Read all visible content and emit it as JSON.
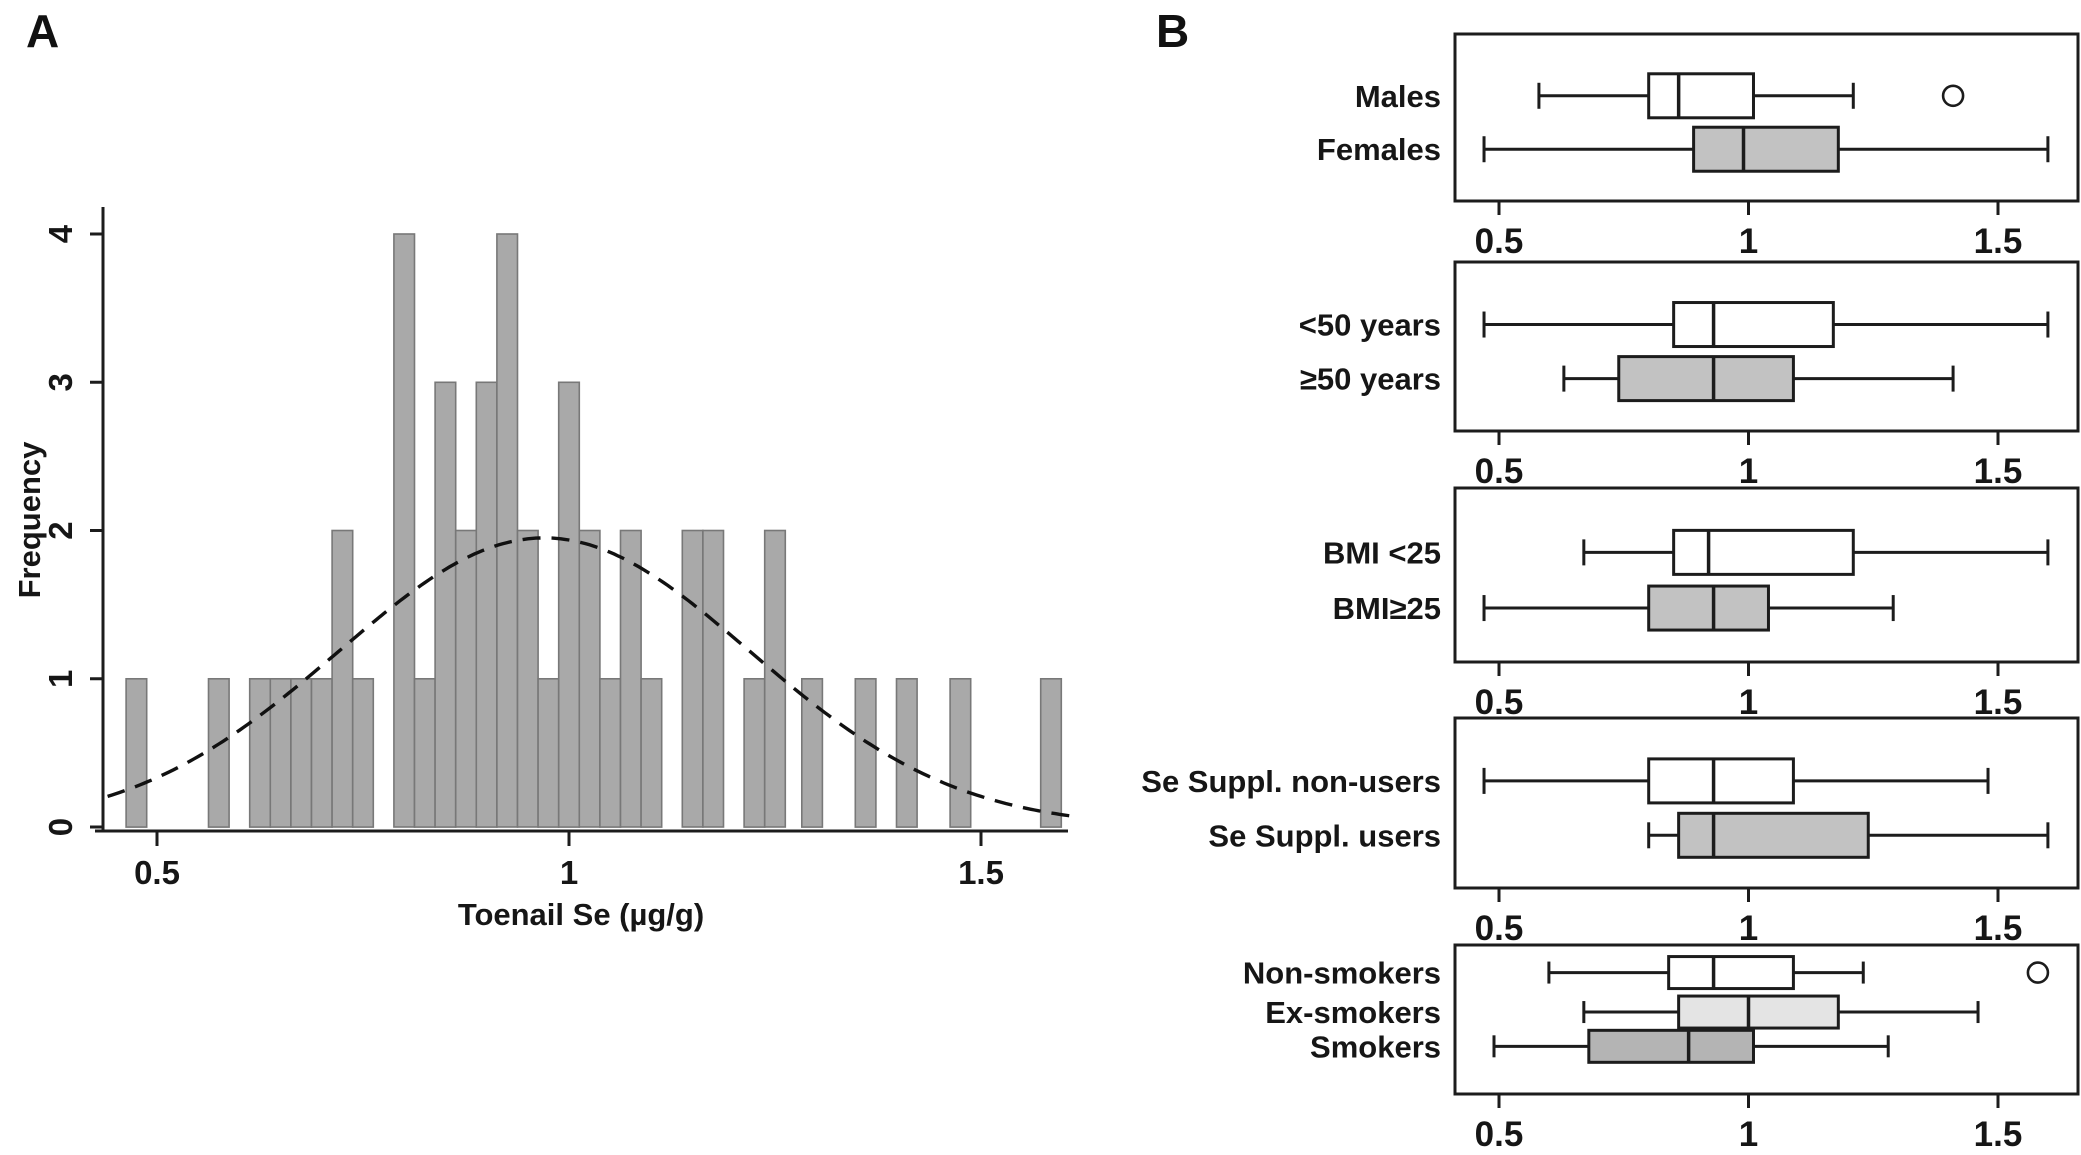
{
  "figure": {
    "panel_a_letter": "A",
    "panel_b_letter": "B",
    "colors": {
      "stroke": "#1c1c1c",
      "bar_fill": "#a9a9a9",
      "bar_stroke": "#787878",
      "curve_color": "#111111",
      "box_white": "#ffffff",
      "box_gray": "#c2c2c2",
      "box_light_gray": "#e4e4e4",
      "box_mid_gray": "#b4b4b4",
      "text": "#161616"
    }
  },
  "chart_data": [
    {
      "type": "bar",
      "subtype": "histogram",
      "title": "",
      "xlabel": "Toenail Se (µg/g)",
      "ylabel": "Frequency",
      "xlim": [
        0.44,
        1.63
      ],
      "ylim": [
        0,
        4
      ],
      "x_tick_values": [
        0.5,
        1.0,
        1.5
      ],
      "x_tick_labels": [
        "0.5",
        "1",
        "1.5"
      ],
      "y_tick_values": [
        0,
        1,
        2,
        3,
        4
      ],
      "y_tick_labels": [
        "0",
        "1",
        "2",
        "3",
        "4"
      ],
      "grid": false,
      "bin_width": 0.025,
      "bins": {
        "centers": [
          0.475,
          0.575,
          0.625,
          0.65,
          0.675,
          0.7,
          0.725,
          0.75,
          0.8,
          0.825,
          0.85,
          0.875,
          0.9,
          0.925,
          0.95,
          0.975,
          1.0,
          1.025,
          1.05,
          1.075,
          1.1,
          1.15,
          1.175,
          1.225,
          1.25,
          1.295,
          1.36,
          1.41,
          1.475,
          1.585
        ],
        "heights": [
          1,
          1,
          1,
          1,
          1,
          1,
          2,
          1,
          4,
          1,
          3,
          2,
          3,
          4,
          2,
          1,
          3,
          2,
          1,
          2,
          1,
          2,
          2,
          1,
          2,
          1,
          1,
          1,
          1,
          1
        ]
      },
      "n_total": 50,
      "curve": {
        "shape": "normal",
        "mean": 0.97,
        "sd": 0.25,
        "peak": 1.95,
        "style": "dashed",
        "range": [
          0.44,
          1.615
        ]
      }
    },
    {
      "type": "boxplot-panels",
      "orientation": "horizontal",
      "xlim": [
        0.44,
        1.63
      ],
      "x_tick_values": [
        0.5,
        1.0,
        1.5
      ],
      "x_tick_labels": [
        "0.5",
        "1",
        "1.5"
      ],
      "panels": [
        {
          "groups": [
            {
              "label": "Males",
              "fill": "white",
              "lo": 0.58,
              "q1": 0.8,
              "med": 0.86,
              "q3": 1.01,
              "hi": 1.21,
              "outliers": [
                1.41
              ]
            },
            {
              "label": "Females",
              "fill": "gray",
              "lo": 0.47,
              "q1": 0.89,
              "med": 0.99,
              "q3": 1.18,
              "hi": 1.6,
              "outliers": []
            }
          ]
        },
        {
          "groups": [
            {
              "label": "<50 years",
              "fill": "white",
              "lo": 0.47,
              "q1": 0.85,
              "med": 0.93,
              "q3": 1.17,
              "hi": 1.6,
              "outliers": []
            },
            {
              "label": "≥50 years",
              "fill": "gray",
              "lo": 0.63,
              "q1": 0.74,
              "med": 0.93,
              "q3": 1.09,
              "hi": 1.41,
              "outliers": []
            }
          ]
        },
        {
          "groups": [
            {
              "label": "BMI <25",
              "fill": "white",
              "lo": 0.67,
              "q1": 0.85,
              "med": 0.92,
              "q3": 1.21,
              "hi": 1.6,
              "outliers": []
            },
            {
              "label": "BMI≥25",
              "fill": "gray",
              "lo": 0.47,
              "q1": 0.8,
              "med": 0.93,
              "q3": 1.04,
              "hi": 1.29,
              "outliers": []
            }
          ]
        },
        {
          "groups": [
            {
              "label": "Se Suppl. non-users",
              "fill": "white",
              "lo": 0.47,
              "q1": 0.8,
              "med": 0.93,
              "q3": 1.09,
              "hi": 1.48,
              "outliers": []
            },
            {
              "label": "Se Suppl. users",
              "fill": "gray",
              "lo": 0.8,
              "q1": 0.86,
              "med": 0.93,
              "q3": 1.24,
              "hi": 1.6,
              "outliers": []
            }
          ]
        },
        {
          "groups": [
            {
              "label": "Non-smokers",
              "fill": "white",
              "lo": 0.6,
              "q1": 0.84,
              "med": 0.93,
              "q3": 1.09,
              "hi": 1.23,
              "outliers": [
                1.58
              ]
            },
            {
              "label": "Ex-smokers",
              "fill": "lightgray",
              "lo": 0.67,
              "q1": 0.86,
              "med": 1.0,
              "q3": 1.18,
              "hi": 1.46,
              "outliers": []
            },
            {
              "label": "Smokers",
              "fill": "midgray",
              "lo": 0.49,
              "q1": 0.68,
              "med": 0.88,
              "q3": 1.01,
              "hi": 1.28,
              "outliers": []
            }
          ]
        }
      ]
    }
  ]
}
